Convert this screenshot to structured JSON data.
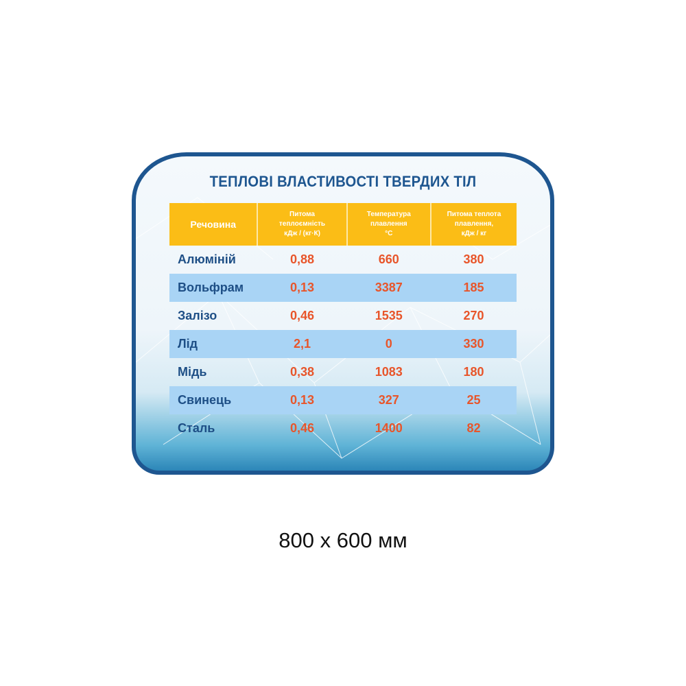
{
  "title": "ТЕПЛОВІ ВЛАСТИВОСТІ ТВЕРДИХ ТІЛ",
  "table": {
    "headers": [
      [
        "Речовина"
      ],
      [
        "Питома",
        "теплоємність",
        "кДж / (кг·К)"
      ],
      [
        "Температура",
        "плавлення",
        "°C"
      ],
      [
        "Питома теплота",
        "плавлення,",
        "кДж / кг"
      ]
    ],
    "rows": [
      [
        "Алюміній",
        "0,88",
        "660",
        "380"
      ],
      [
        "Вольфрам",
        "0,13",
        "3387",
        "185"
      ],
      [
        "Залізо",
        "0,46",
        "1535",
        "270"
      ],
      [
        "Лід",
        "2,1",
        "0",
        "330"
      ],
      [
        "Мідь",
        "0,38",
        "1083",
        "180"
      ],
      [
        "Свинець",
        "0,13",
        "327",
        "25"
      ],
      [
        "Сталь",
        "0,46",
        "1400",
        "82"
      ]
    ]
  },
  "size_label": "800 x 600 мм",
  "colors": {
    "border": "#1e5690",
    "header": "#fbbd16",
    "band": "#a9d4f5",
    "value": "#e8552a",
    "name": "#1e4f86"
  }
}
